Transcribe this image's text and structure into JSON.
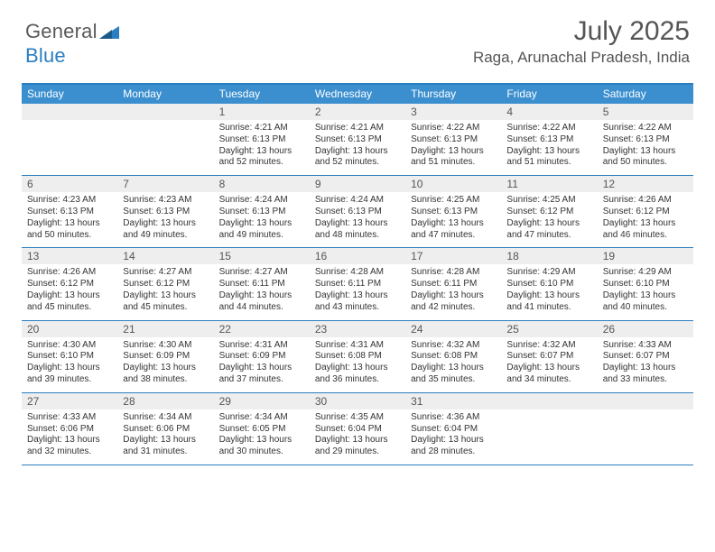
{
  "brand": {
    "part1": "General",
    "part2": "Blue"
  },
  "title": "July 2025",
  "location": "Raga, Arunachal Pradesh, India",
  "colors": {
    "accent": "#2b7ec1",
    "header_bg": "#3b8fcf",
    "daynum_bg": "#eeeeee",
    "text": "#333333",
    "title_text": "#555555"
  },
  "dayHeaders": [
    "Sunday",
    "Monday",
    "Tuesday",
    "Wednesday",
    "Thursday",
    "Friday",
    "Saturday"
  ],
  "weeks": [
    [
      null,
      null,
      {
        "n": "1",
        "sr": "Sunrise: 4:21 AM",
        "ss": "Sunset: 6:13 PM",
        "dl": "Daylight: 13 hours and 52 minutes."
      },
      {
        "n": "2",
        "sr": "Sunrise: 4:21 AM",
        "ss": "Sunset: 6:13 PM",
        "dl": "Daylight: 13 hours and 52 minutes."
      },
      {
        "n": "3",
        "sr": "Sunrise: 4:22 AM",
        "ss": "Sunset: 6:13 PM",
        "dl": "Daylight: 13 hours and 51 minutes."
      },
      {
        "n": "4",
        "sr": "Sunrise: 4:22 AM",
        "ss": "Sunset: 6:13 PM",
        "dl": "Daylight: 13 hours and 51 minutes."
      },
      {
        "n": "5",
        "sr": "Sunrise: 4:22 AM",
        "ss": "Sunset: 6:13 PM",
        "dl": "Daylight: 13 hours and 50 minutes."
      }
    ],
    [
      {
        "n": "6",
        "sr": "Sunrise: 4:23 AM",
        "ss": "Sunset: 6:13 PM",
        "dl": "Daylight: 13 hours and 50 minutes."
      },
      {
        "n": "7",
        "sr": "Sunrise: 4:23 AM",
        "ss": "Sunset: 6:13 PM",
        "dl": "Daylight: 13 hours and 49 minutes."
      },
      {
        "n": "8",
        "sr": "Sunrise: 4:24 AM",
        "ss": "Sunset: 6:13 PM",
        "dl": "Daylight: 13 hours and 49 minutes."
      },
      {
        "n": "9",
        "sr": "Sunrise: 4:24 AM",
        "ss": "Sunset: 6:13 PM",
        "dl": "Daylight: 13 hours and 48 minutes."
      },
      {
        "n": "10",
        "sr": "Sunrise: 4:25 AM",
        "ss": "Sunset: 6:13 PM",
        "dl": "Daylight: 13 hours and 47 minutes."
      },
      {
        "n": "11",
        "sr": "Sunrise: 4:25 AM",
        "ss": "Sunset: 6:12 PM",
        "dl": "Daylight: 13 hours and 47 minutes."
      },
      {
        "n": "12",
        "sr": "Sunrise: 4:26 AM",
        "ss": "Sunset: 6:12 PM",
        "dl": "Daylight: 13 hours and 46 minutes."
      }
    ],
    [
      {
        "n": "13",
        "sr": "Sunrise: 4:26 AM",
        "ss": "Sunset: 6:12 PM",
        "dl": "Daylight: 13 hours and 45 minutes."
      },
      {
        "n": "14",
        "sr": "Sunrise: 4:27 AM",
        "ss": "Sunset: 6:12 PM",
        "dl": "Daylight: 13 hours and 45 minutes."
      },
      {
        "n": "15",
        "sr": "Sunrise: 4:27 AM",
        "ss": "Sunset: 6:11 PM",
        "dl": "Daylight: 13 hours and 44 minutes."
      },
      {
        "n": "16",
        "sr": "Sunrise: 4:28 AM",
        "ss": "Sunset: 6:11 PM",
        "dl": "Daylight: 13 hours and 43 minutes."
      },
      {
        "n": "17",
        "sr": "Sunrise: 4:28 AM",
        "ss": "Sunset: 6:11 PM",
        "dl": "Daylight: 13 hours and 42 minutes."
      },
      {
        "n": "18",
        "sr": "Sunrise: 4:29 AM",
        "ss": "Sunset: 6:10 PM",
        "dl": "Daylight: 13 hours and 41 minutes."
      },
      {
        "n": "19",
        "sr": "Sunrise: 4:29 AM",
        "ss": "Sunset: 6:10 PM",
        "dl": "Daylight: 13 hours and 40 minutes."
      }
    ],
    [
      {
        "n": "20",
        "sr": "Sunrise: 4:30 AM",
        "ss": "Sunset: 6:10 PM",
        "dl": "Daylight: 13 hours and 39 minutes."
      },
      {
        "n": "21",
        "sr": "Sunrise: 4:30 AM",
        "ss": "Sunset: 6:09 PM",
        "dl": "Daylight: 13 hours and 38 minutes."
      },
      {
        "n": "22",
        "sr": "Sunrise: 4:31 AM",
        "ss": "Sunset: 6:09 PM",
        "dl": "Daylight: 13 hours and 37 minutes."
      },
      {
        "n": "23",
        "sr": "Sunrise: 4:31 AM",
        "ss": "Sunset: 6:08 PM",
        "dl": "Daylight: 13 hours and 36 minutes."
      },
      {
        "n": "24",
        "sr": "Sunrise: 4:32 AM",
        "ss": "Sunset: 6:08 PM",
        "dl": "Daylight: 13 hours and 35 minutes."
      },
      {
        "n": "25",
        "sr": "Sunrise: 4:32 AM",
        "ss": "Sunset: 6:07 PM",
        "dl": "Daylight: 13 hours and 34 minutes."
      },
      {
        "n": "26",
        "sr": "Sunrise: 4:33 AM",
        "ss": "Sunset: 6:07 PM",
        "dl": "Daylight: 13 hours and 33 minutes."
      }
    ],
    [
      {
        "n": "27",
        "sr": "Sunrise: 4:33 AM",
        "ss": "Sunset: 6:06 PM",
        "dl": "Daylight: 13 hours and 32 minutes."
      },
      {
        "n": "28",
        "sr": "Sunrise: 4:34 AM",
        "ss": "Sunset: 6:06 PM",
        "dl": "Daylight: 13 hours and 31 minutes."
      },
      {
        "n": "29",
        "sr": "Sunrise: 4:34 AM",
        "ss": "Sunset: 6:05 PM",
        "dl": "Daylight: 13 hours and 30 minutes."
      },
      {
        "n": "30",
        "sr": "Sunrise: 4:35 AM",
        "ss": "Sunset: 6:04 PM",
        "dl": "Daylight: 13 hours and 29 minutes."
      },
      {
        "n": "31",
        "sr": "Sunrise: 4:36 AM",
        "ss": "Sunset: 6:04 PM",
        "dl": "Daylight: 13 hours and 28 minutes."
      },
      null,
      null
    ]
  ]
}
